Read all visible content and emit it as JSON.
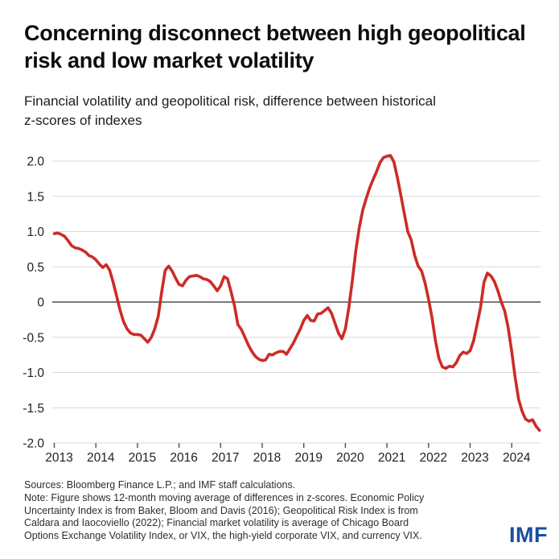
{
  "header": {
    "title_lines": [
      "Concerning disconnect between high geopolitical",
      "risk and low market volatility"
    ],
    "subtitle_lines": [
      "Financial volatility and geopolitical risk, difference between historical",
      "z-scores of indexes"
    ]
  },
  "chart_data": {
    "type": "line",
    "title": "Financial volatility and geopolitical risk, difference between historical z-scores of indexes",
    "frequency": "monthly",
    "x_start": "2013-01",
    "x_end": "2024-09",
    "x_tick_labels": [
      "2013",
      "2014",
      "2015",
      "2016",
      "2017",
      "2018",
      "2019",
      "2020",
      "2021",
      "2022",
      "2023",
      "2024"
    ],
    "y_ticks": [
      2.0,
      1.5,
      1.0,
      0.5,
      0,
      -0.5,
      -1.0,
      -1.5,
      -2.0
    ],
    "y_tick_labels": [
      "2.0",
      "1.5",
      "1.0",
      "0.5",
      "0",
      "-0.5",
      "-1.0",
      "-1.5",
      "-2.0"
    ],
    "ylim": [
      -2.0,
      2.1
    ],
    "grid": "horizontal",
    "zero_line": true,
    "legend_position": "none",
    "series": [
      {
        "name": "Difference between historical z-scores, 12-month moving average",
        "values": [
          0.97,
          0.98,
          0.96,
          0.93,
          0.87,
          0.8,
          0.77,
          0.76,
          0.74,
          0.71,
          0.66,
          0.64,
          0.6,
          0.54,
          0.49,
          0.53,
          0.45,
          0.28,
          0.08,
          -0.12,
          -0.28,
          -0.38,
          -0.44,
          -0.46,
          -0.46,
          -0.47,
          -0.52,
          -0.57,
          -0.5,
          -0.38,
          -0.2,
          0.15,
          0.45,
          0.51,
          0.44,
          0.34,
          0.25,
          0.23,
          0.31,
          0.36,
          0.37,
          0.38,
          0.36,
          0.33,
          0.32,
          0.29,
          0.23,
          0.16,
          0.23,
          0.36,
          0.33,
          0.15,
          -0.05,
          -0.32,
          -0.39,
          -0.5,
          -0.61,
          -0.7,
          -0.77,
          -0.81,
          -0.83,
          -0.82,
          -0.74,
          -0.75,
          -0.72,
          -0.7,
          -0.7,
          -0.74,
          -0.66,
          -0.58,
          -0.48,
          -0.38,
          -0.26,
          -0.19,
          -0.26,
          -0.27,
          -0.17,
          -0.16,
          -0.12,
          -0.08,
          -0.16,
          -0.3,
          -0.44,
          -0.52,
          -0.38,
          -0.08,
          0.3,
          0.72,
          1.05,
          1.3,
          1.47,
          1.62,
          1.74,
          1.85,
          1.98,
          2.05,
          2.07,
          2.08,
          1.99,
          1.77,
          1.52,
          1.26,
          1.0,
          0.88,
          0.66,
          0.51,
          0.44,
          0.27,
          0.04,
          -0.22,
          -0.55,
          -0.8,
          -0.92,
          -0.94,
          -0.91,
          -0.92,
          -0.86,
          -0.76,
          -0.71,
          -0.73,
          -0.69,
          -0.55,
          -0.32,
          -0.08,
          0.28,
          0.41,
          0.37,
          0.29,
          0.16,
          0.0,
          -0.13,
          -0.37,
          -0.7,
          -1.07,
          -1.38,
          -1.55,
          -1.66,
          -1.69,
          -1.67,
          -1.76,
          -1.82
        ]
      }
    ]
  },
  "colors": {
    "line_red": "#cd2b27",
    "grid_gray": "#d9d9d9",
    "zero_line_gray": "#4f4f51",
    "tick_gray": "#4f4f51",
    "axis_text": "#1f1f1f",
    "logo_blue": "#1b4da1"
  },
  "footer": {
    "lines": [
      "Sources: Bloomberg Finance L.P.; and IMF staff calculations.",
      "Note: Figure shows 12-month moving average of differences in z-scores. Economic Policy",
      "Uncertainty Index is from Baker, Bloom and Davis (2016); Geopolitical Risk Index is from",
      "Caldara and Iaocoviello (2022); Financial market volatility is average of Chicago Board",
      "Options Exchange Volatility Index, or VIX, the high-yield corporate VIX, and currency VIX."
    ],
    "logo": "IMF"
  }
}
